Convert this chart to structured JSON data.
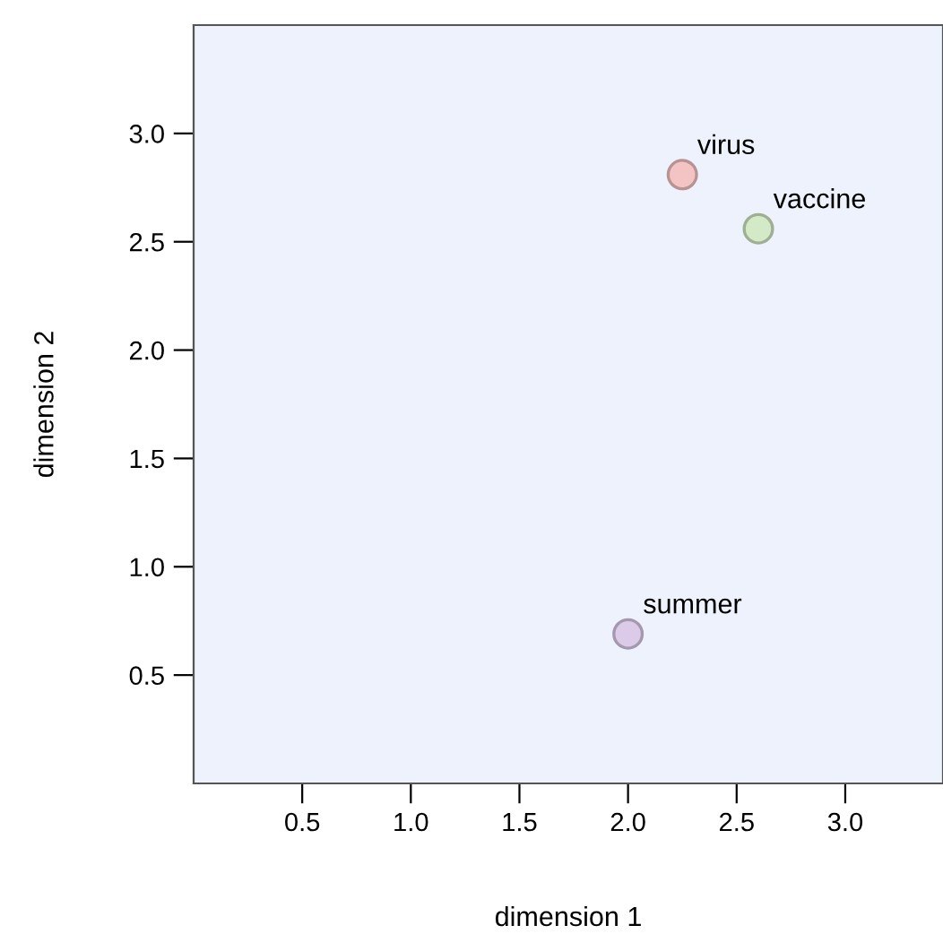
{
  "chart_data": {
    "type": "scatter",
    "xlabel": "dimension 1",
    "ylabel": "dimension 2",
    "x": [
      2.25,
      2.6,
      2.0
    ],
    "values": [
      2.81,
      2.56,
      0.69
    ],
    "colors": [
      "#f4c4c4",
      "#d4e9c6",
      "#dccbe8"
    ],
    "annotations": [
      {
        "text": "virus",
        "x": 2.25,
        "y": 2.81
      },
      {
        "text": "vaccine",
        "x": 2.6,
        "y": 2.56
      },
      {
        "text": "summer",
        "x": 2.0,
        "y": 0.69
      }
    ],
    "xlim": [
      0,
      3.45
    ],
    "ylim": [
      0,
      3.5
    ],
    "xticks": [
      0.5,
      {
        "value": 1,
        "label": "1.0"
      },
      1.5,
      {
        "value": 2,
        "label": "2.0"
      },
      2.5,
      {
        "value": 3,
        "label": "3.0"
      }
    ],
    "yticks": [
      0.5,
      {
        "value": 1,
        "label": "1.0"
      },
      1.5,
      {
        "value": 2,
        "label": "2.0"
      },
      2.5,
      {
        "value": 3,
        "label": "3.0"
      }
    ],
    "grid": false,
    "marker": "circle"
  }
}
